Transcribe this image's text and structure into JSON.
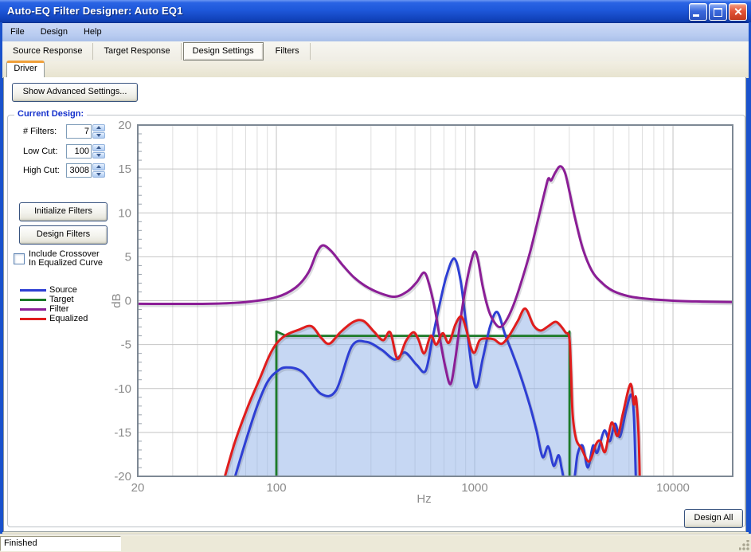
{
  "window": {
    "title": "Auto-EQ Filter Designer: Auto EQ1"
  },
  "menu": {
    "items": [
      "File",
      "Design",
      "Help"
    ]
  },
  "tabs": {
    "items": [
      "Source Response",
      "Target Response",
      "Design Settings",
      "Filters"
    ],
    "selected": "Design Settings"
  },
  "subtab": {
    "label": "Driver"
  },
  "controls": {
    "advanced_button": "Show Advanced Settings...",
    "group_title": "Current Design:",
    "fields": [
      {
        "label": "# Filters:",
        "value": "7"
      },
      {
        "label": "Low Cut:",
        "value": "100"
      },
      {
        "label": "High Cut:",
        "value": "3008"
      }
    ],
    "initialize_button": "Initialize Filters",
    "design_button": "Design Filters",
    "checkbox": {
      "line1": "Include  Crossover",
      "line2": "In Equalized Curve",
      "checked": false
    },
    "design_all_button": "Design All"
  },
  "legend": {
    "items": [
      {
        "label": "Source",
        "color": "#2e3fd4"
      },
      {
        "label": "Target",
        "color": "#1c7a28"
      },
      {
        "label": "Filter",
        "color": "#8b1e96"
      },
      {
        "label": "Equalized",
        "color": "#e01d1d"
      }
    ]
  },
  "status": {
    "text": "Finished"
  },
  "chart_data": {
    "type": "line",
    "title": "",
    "xlabel": "Hz",
    "ylabel": "dB",
    "x_scale": "log",
    "xlim": [
      20,
      20000
    ],
    "ylim": [
      -20,
      20
    ],
    "x_tick_labels": [
      "20",
      "100",
      "1000",
      "10000"
    ],
    "y_tick_labels": [
      "-20",
      "-15",
      "-10",
      "-5",
      "0",
      "5",
      "10",
      "15",
      "20"
    ],
    "y_tick_step": 5,
    "y_minor_step": 1,
    "grid": true,
    "legend_position": "left-panel",
    "series": [
      {
        "name": "Source",
        "color": "#2e3fd4",
        "z": 2,
        "smooth": true,
        "points": [
          [
            62,
            -20
          ],
          [
            70,
            -16
          ],
          [
            80,
            -12
          ],
          [
            90,
            -9.3
          ],
          [
            100,
            -8.1
          ],
          [
            112,
            -7.6
          ],
          [
            135,
            -8.1
          ],
          [
            168,
            -10.6
          ],
          [
            200,
            -10.2
          ],
          [
            240,
            -5.2
          ],
          [
            285,
            -4.7
          ],
          [
            340,
            -5.6
          ],
          [
            395,
            -6.7
          ],
          [
            445,
            -5.9
          ],
          [
            510,
            -7.3
          ],
          [
            565,
            -8
          ],
          [
            610,
            -4.5
          ],
          [
            660,
            -0.8
          ],
          [
            720,
            2.8
          ],
          [
            789,
            4.8
          ],
          [
            850,
            2.2
          ],
          [
            910,
            -3
          ],
          [
            1008,
            -9.8
          ],
          [
            1100,
            -6.5
          ],
          [
            1200,
            -2.8
          ],
          [
            1300,
            -1.3
          ],
          [
            1420,
            -3.8
          ],
          [
            1550,
            -6
          ],
          [
            1700,
            -8.5
          ],
          [
            1900,
            -12
          ],
          [
            2050,
            -14.8
          ],
          [
            2200,
            -17.8
          ],
          [
            2350,
            -16.6
          ],
          [
            2500,
            -18.8
          ],
          [
            2650,
            -17.6
          ],
          [
            2750,
            -19.2
          ],
          [
            2860,
            -20.6
          ],
          [
            3150,
            -20.6
          ],
          [
            3300,
            -17.5
          ],
          [
            3500,
            -16.5
          ],
          [
            3720,
            -19
          ],
          [
            3950,
            -16.5
          ],
          [
            4150,
            -17.3
          ],
          [
            4500,
            -14.8
          ],
          [
            4800,
            -16
          ],
          [
            5100,
            -14
          ],
          [
            5400,
            -15.5
          ],
          [
            5800,
            -12.5
          ],
          [
            6150,
            -10.7
          ],
          [
            6350,
            -13
          ],
          [
            6500,
            -20.6
          ]
        ]
      },
      {
        "name": "Target",
        "color": "#1c7a28",
        "z": 1,
        "smooth": false,
        "points": [
          [
            100,
            -20.4
          ],
          [
            100,
            -3.5
          ],
          [
            112,
            -4
          ],
          [
            2940,
            -4
          ],
          [
            3008,
            -3.5
          ],
          [
            3008,
            -20.4
          ]
        ]
      },
      {
        "name": "Filter",
        "color": "#8b1e96",
        "z": 3,
        "smooth": true,
        "points": [
          [
            20,
            -0.35
          ],
          [
            45,
            -0.35
          ],
          [
            70,
            -0.15
          ],
          [
            100,
            0.4
          ],
          [
            125,
            1.5
          ],
          [
            145,
            3.2
          ],
          [
            160,
            5.5
          ],
          [
            172,
            6.3
          ],
          [
            190,
            5.6
          ],
          [
            215,
            4.1
          ],
          [
            245,
            2.7
          ],
          [
            280,
            1.7
          ],
          [
            330,
            0.9
          ],
          [
            396,
            0.45
          ],
          [
            460,
            1.1
          ],
          [
            510,
            2.1
          ],
          [
            556,
            3.2
          ],
          [
            590,
            1.8
          ],
          [
            630,
            -1
          ],
          [
            670,
            -4.5
          ],
          [
            710,
            -7.5
          ],
          [
            755,
            -9.5
          ],
          [
            800,
            -6.5
          ],
          [
            850,
            -2
          ],
          [
            900,
            1.5
          ],
          [
            955,
            4.3
          ],
          [
            1000,
            5.6
          ],
          [
            1040,
            4.6
          ],
          [
            1100,
            1.5
          ],
          [
            1180,
            -1.2
          ],
          [
            1270,
            -2.6
          ],
          [
            1345,
            -3
          ],
          [
            1430,
            -2.4
          ],
          [
            1550,
            -0.8
          ],
          [
            1700,
            1.8
          ],
          [
            1900,
            5.5
          ],
          [
            2100,
            9.5
          ],
          [
            2250,
            12.3
          ],
          [
            2350,
            13.9
          ],
          [
            2430,
            13.7
          ],
          [
            2550,
            14.6
          ],
          [
            2700,
            15.3
          ],
          [
            2850,
            14.6
          ],
          [
            3000,
            12.5
          ],
          [
            3200,
            9.5
          ],
          [
            3500,
            6
          ],
          [
            3900,
            3.4
          ],
          [
            4400,
            2
          ],
          [
            5000,
            1.1
          ],
          [
            6000,
            0.5
          ],
          [
            7500,
            0.2
          ],
          [
            10000,
            0
          ],
          [
            14000,
            -0.1
          ],
          [
            20000,
            -0.15
          ]
        ]
      },
      {
        "name": "Equalized",
        "color": "#e01d1d",
        "z": 4,
        "smooth": true,
        "fill": "rgba(141,175,231,0.5)",
        "fill_to": -20,
        "points": [
          [
            55,
            -20
          ],
          [
            62,
            -16
          ],
          [
            72,
            -12
          ],
          [
            82,
            -9
          ],
          [
            92,
            -6.3
          ],
          [
            100,
            -4.9
          ],
          [
            112,
            -3.9
          ],
          [
            130,
            -3.3
          ],
          [
            150,
            -2.9
          ],
          [
            168,
            -4.2
          ],
          [
            185,
            -4.9
          ],
          [
            210,
            -3.6
          ],
          [
            245,
            -2.4
          ],
          [
            275,
            -2.3
          ],
          [
            310,
            -3.5
          ],
          [
            345,
            -4.5
          ],
          [
            375,
            -3.6
          ],
          [
            408,
            -6.6
          ],
          [
            450,
            -4.6
          ],
          [
            490,
            -3.6
          ],
          [
            520,
            -4.4
          ],
          [
            556,
            -6
          ],
          [
            600,
            -4
          ],
          [
            640,
            -5
          ],
          [
            690,
            -3.7
          ],
          [
            740,
            -4.8
          ],
          [
            800,
            -2.7
          ],
          [
            855,
            -1.8
          ],
          [
            905,
            -3.2
          ],
          [
            955,
            -5.3
          ],
          [
            1000,
            -5.9
          ],
          [
            1060,
            -4.5
          ],
          [
            1150,
            -4.3
          ],
          [
            1250,
            -4.4
          ],
          [
            1370,
            -4.9
          ],
          [
            1500,
            -3.9
          ],
          [
            1650,
            -2.3
          ],
          [
            1800,
            -0.9
          ],
          [
            1980,
            -2.8
          ],
          [
            2150,
            -3.4
          ],
          [
            2350,
            -2.9
          ],
          [
            2550,
            -2.4
          ],
          [
            2700,
            -2.8
          ],
          [
            2870,
            -3.6
          ],
          [
            3000,
            -4.2
          ],
          [
            3060,
            -8
          ],
          [
            3120,
            -13
          ],
          [
            3250,
            -15.8
          ],
          [
            3450,
            -16.8
          ],
          [
            3770,
            -18.3
          ],
          [
            4100,
            -16.3
          ],
          [
            4300,
            -16
          ],
          [
            4550,
            -17.2
          ],
          [
            4900,
            -13.9
          ],
          [
            5250,
            -15.4
          ],
          [
            5600,
            -12.8
          ],
          [
            6100,
            -9.5
          ],
          [
            6350,
            -11.8
          ],
          [
            6500,
            -11
          ],
          [
            6700,
            -15
          ],
          [
            6800,
            -20.4
          ]
        ]
      }
    ]
  }
}
